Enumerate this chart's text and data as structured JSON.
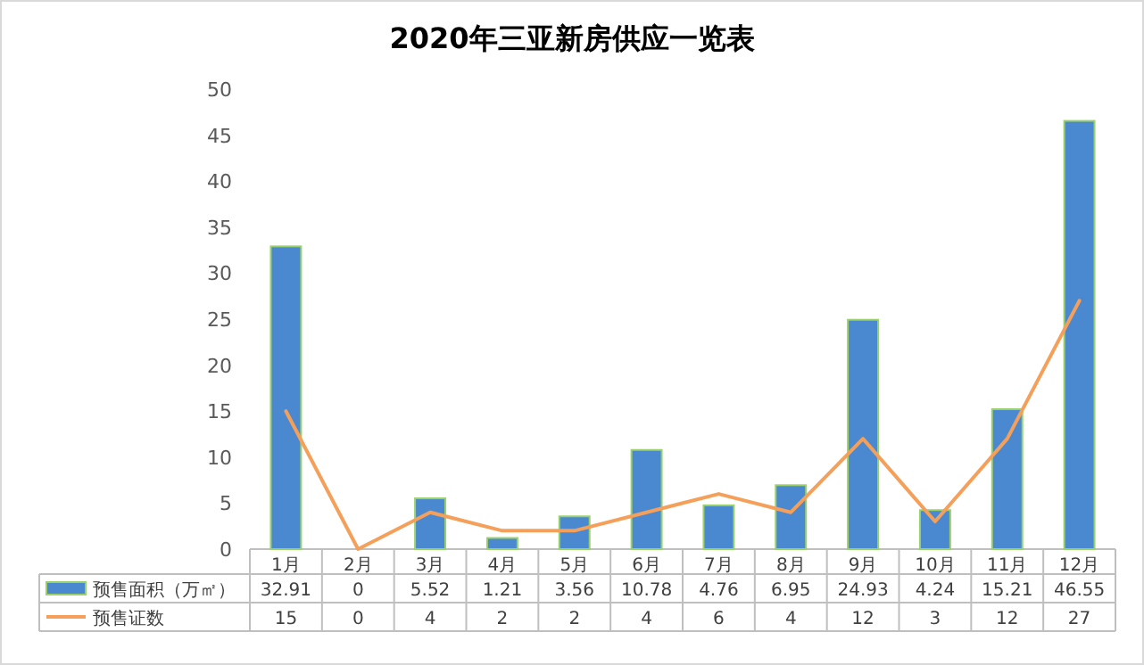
{
  "chart_data": {
    "type": "bar",
    "title": "2020年三亚新房供应一览表",
    "categories": [
      "1月",
      "2月",
      "3月",
      "4月",
      "5月",
      "6月",
      "7月",
      "8月",
      "9月",
      "10月",
      "11月",
      "12月"
    ],
    "series": [
      {
        "name": "预售面积（万㎡）",
        "color": "#4a89d0",
        "values": [
          32.91,
          0,
          5.52,
          1.21,
          3.56,
          10.78,
          4.76,
          6.95,
          24.93,
          4.24,
          15.21,
          46.55
        ]
      },
      {
        "name": "预售证数",
        "type": "line",
        "color": "#f5a05a",
        "values": [
          15,
          0,
          4,
          2,
          2,
          4,
          6,
          4,
          12,
          3,
          12,
          27
        ]
      }
    ],
    "ylim": [
      0,
      50
    ],
    "yticks": [
      0,
      5,
      10,
      15,
      20,
      25,
      30,
      35,
      40,
      45,
      50
    ],
    "data_labels": true,
    "legend": "bottom"
  }
}
